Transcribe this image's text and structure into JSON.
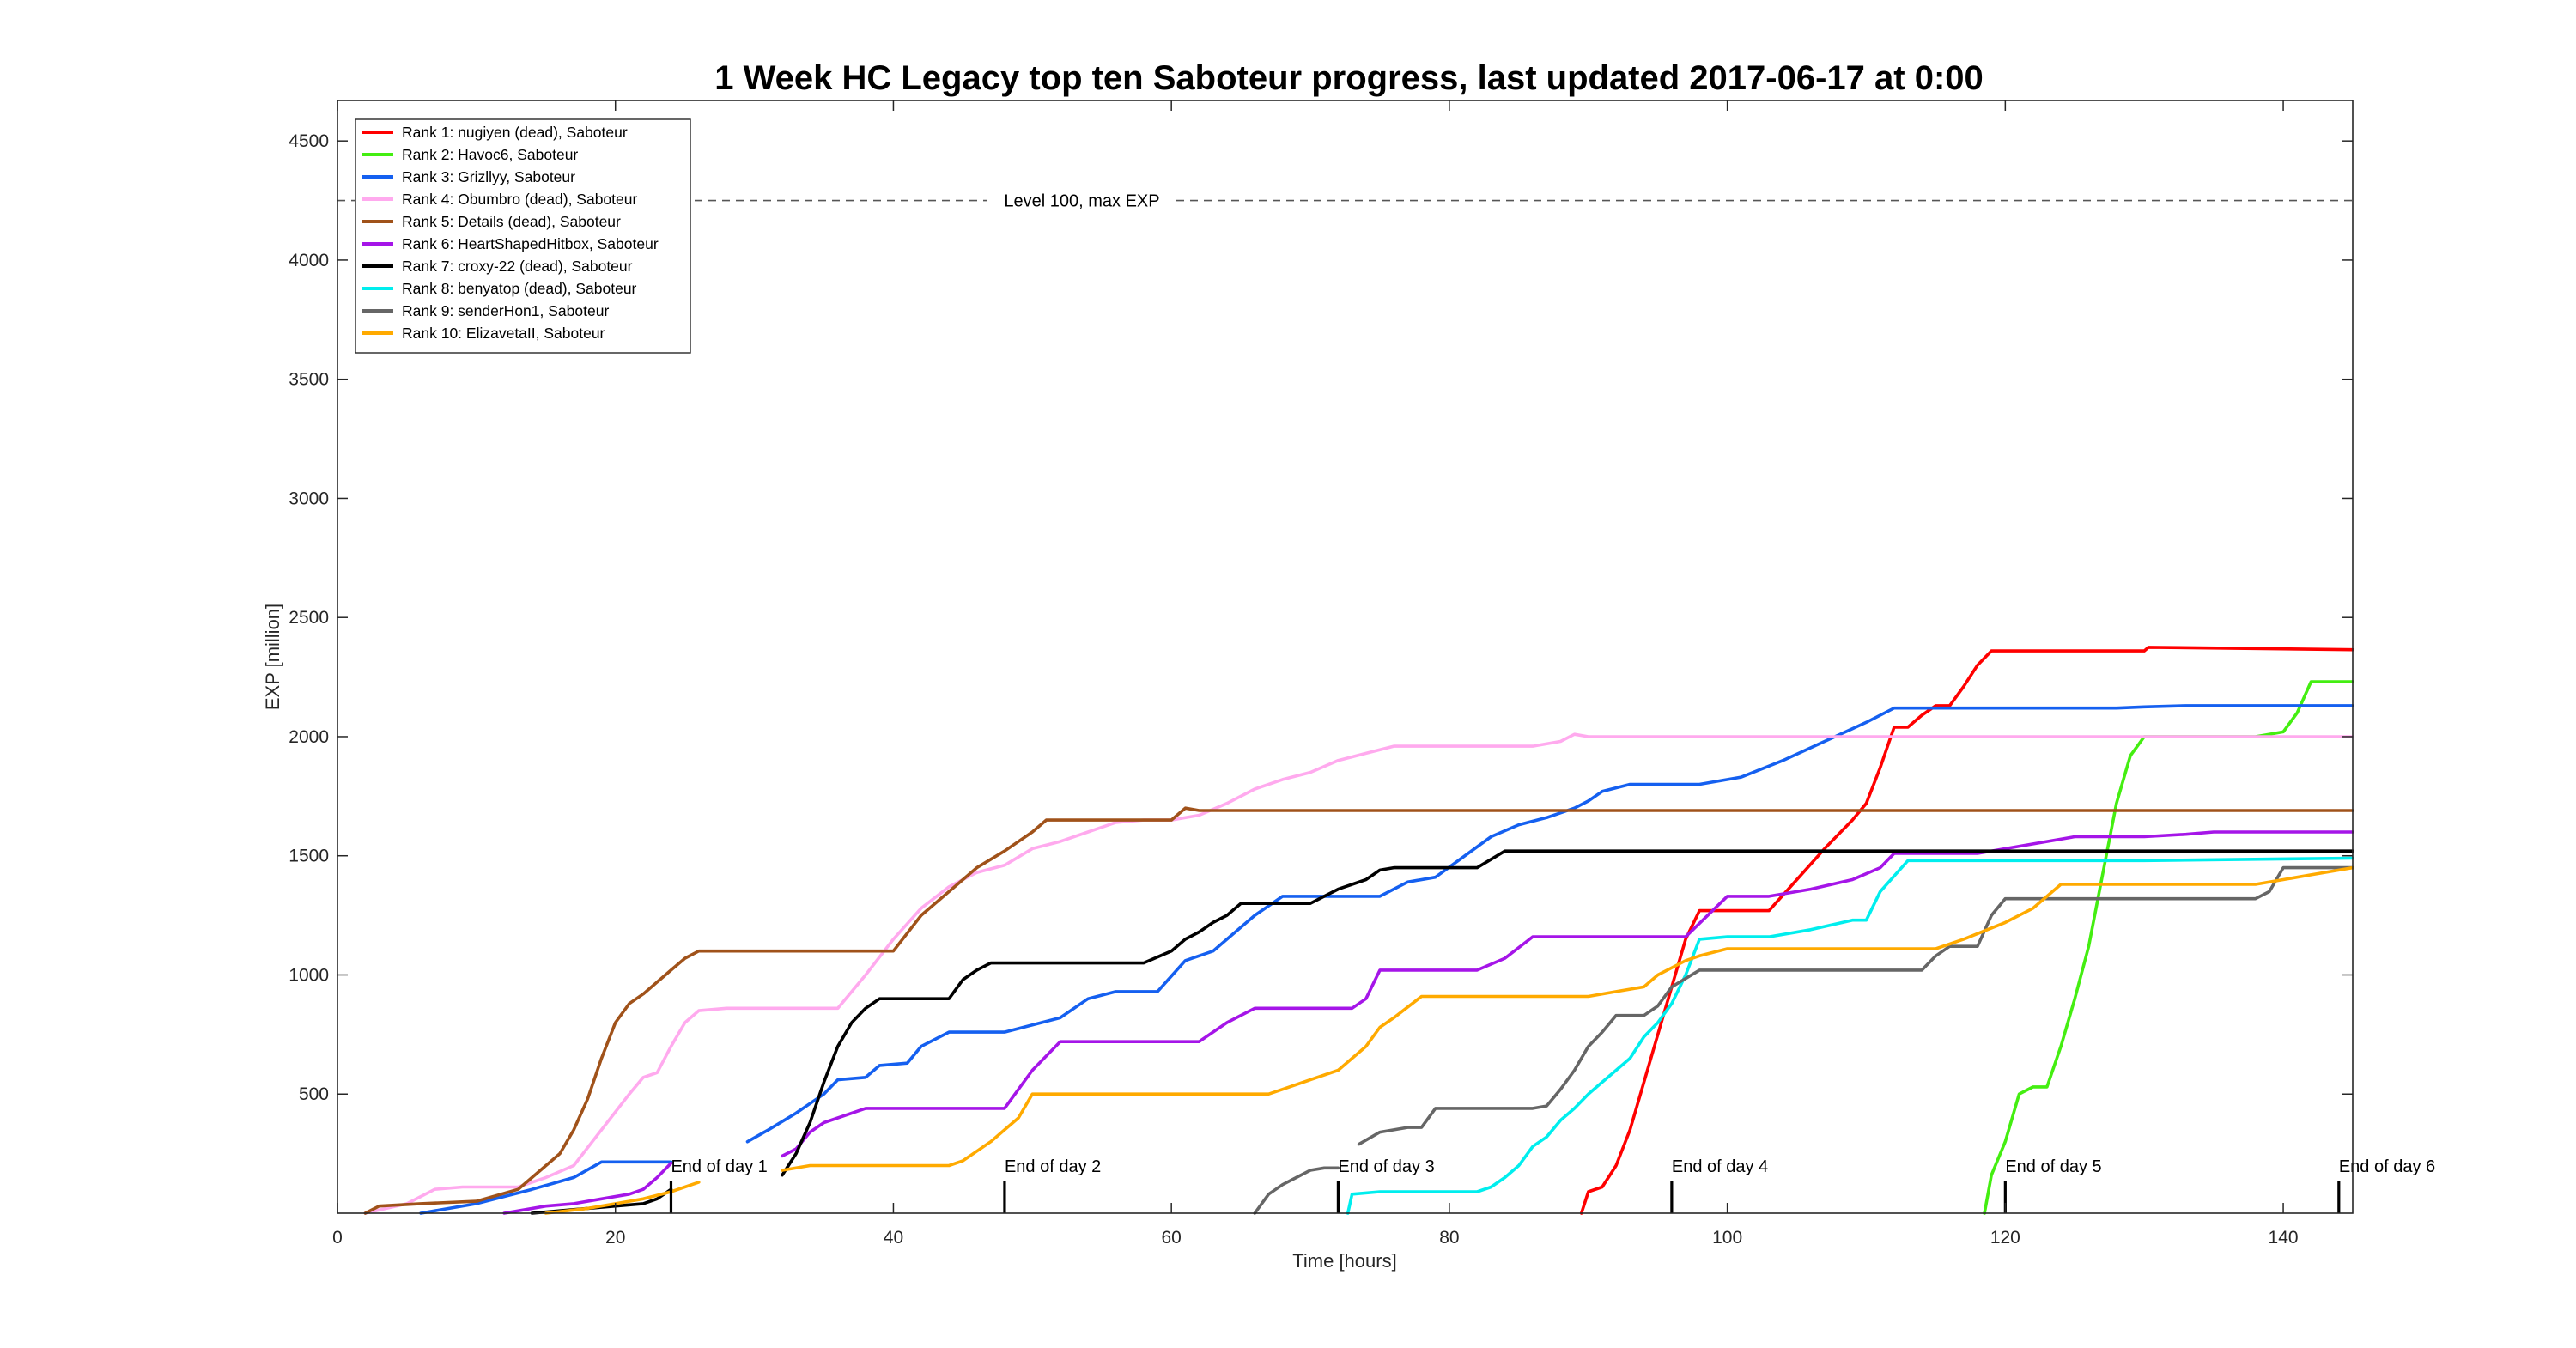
{
  "chart_data": {
    "type": "line",
    "title": "1 Week HC Legacy top ten Saboteur progress, last updated 2017-06-17 at 0:00",
    "xlabel": "Time [hours]",
    "ylabel": "EXP [million]",
    "xlim": [
      0,
      145
    ],
    "ylim": [
      0,
      4670
    ],
    "xticks": [
      0,
      20,
      40,
      60,
      80,
      100,
      120,
      140
    ],
    "yticks": [
      500,
      1000,
      1500,
      2000,
      2500,
      3000,
      3500,
      4000,
      4500
    ],
    "grid": false,
    "legend_position": "top-left",
    "max_level": {
      "value": 4250,
      "label": "Level 100, max EXP"
    },
    "day_markers": [
      {
        "x": 24,
        "label": "End of day 1"
      },
      {
        "x": 48,
        "label": "End of day 2"
      },
      {
        "x": 72,
        "label": "End of day 3"
      },
      {
        "x": 96,
        "label": "End of day 4"
      },
      {
        "x": 120,
        "label": "End of day 5"
      },
      {
        "x": 144,
        "label": "End of day 6"
      }
    ],
    "series": [
      {
        "name": "Rank 1: nugiyen (dead), Saboteur",
        "color": "#ff0000",
        "x": [
          89.5,
          90,
          91,
          92,
          93,
          94,
          95,
          96,
          97,
          98,
          99,
          101,
          103,
          105,
          107,
          109,
          110,
          111,
          112,
          113,
          114,
          115,
          116,
          117,
          118,
          119,
          130,
          130.3,
          145
        ],
        "y": [
          0,
          90,
          110,
          200,
          350,
          550,
          750,
          950,
          1150,
          1270,
          1270,
          1270,
          1270,
          1400,
          1530,
          1650,
          1720,
          1870,
          2040,
          2040,
          2090,
          2130,
          2130,
          2210,
          2300,
          2360,
          2360,
          2375,
          2365
        ]
      },
      {
        "name": "Rank 2: Havoc6, Saboteur",
        "color": "#44ee11",
        "x": [
          118.5,
          119,
          120,
          121,
          122,
          123,
          124,
          125,
          126,
          127,
          128,
          129,
          130,
          131,
          136,
          138,
          140,
          141,
          142,
          145
        ],
        "y": [
          0,
          160,
          300,
          500,
          530,
          530,
          700,
          900,
          1120,
          1420,
          1720,
          1920,
          2000,
          2000,
          2000,
          2000,
          2020,
          2100,
          2230,
          2230
        ]
      },
      {
        "name": "Rank 3: Grizllyy, Saboteur",
        "color": "#1560f0",
        "x": [
          6,
          10,
          14,
          17,
          19,
          21,
          24,
          null,
          29.5,
          31,
          33,
          35,
          36,
          38,
          39,
          41,
          42,
          44,
          48,
          50,
          52,
          54,
          56,
          59,
          61,
          63,
          66,
          68,
          71,
          75,
          77,
          79,
          83,
          85,
          87,
          89,
          90,
          91,
          93,
          96,
          98,
          101,
          104,
          107,
          110,
          112,
          116,
          128,
          130,
          133,
          145
        ],
        "y": [
          0,
          40,
          100,
          150,
          215,
          215,
          215,
          null,
          300,
          350,
          420,
          500,
          560,
          570,
          620,
          630,
          700,
          760,
          760,
          790,
          820,
          900,
          930,
          930,
          1060,
          1100,
          1250,
          1330,
          1330,
          1330,
          1390,
          1410,
          1580,
          1630,
          1660,
          1700,
          1730,
          1770,
          1800,
          1800,
          1800,
          1830,
          1900,
          1980,
          2060,
          2120,
          2120,
          2120,
          2125,
          2130,
          2130
        ]
      },
      {
        "name": "Rank 4: Obumbro (dead), Saboteur",
        "color": "#ffaaee",
        "x": [
          2,
          5,
          7,
          9,
          11,
          13,
          15,
          17,
          19,
          21,
          22,
          23,
          24,
          25,
          26,
          28,
          31,
          36,
          38,
          40,
          42,
          44,
          46,
          48,
          50,
          52,
          54,
          56,
          58,
          60,
          62,
          64,
          66,
          68,
          70,
          72,
          74,
          76,
          86,
          88,
          89,
          90,
          145
        ],
        "y": [
          0,
          40,
          100,
          110,
          110,
          110,
          150,
          200,
          350,
          500,
          570,
          590,
          700,
          800,
          850,
          860,
          860,
          860,
          1000,
          1150,
          1280,
          1370,
          1430,
          1460,
          1530,
          1560,
          1600,
          1640,
          1650,
          1650,
          1670,
          1720,
          1780,
          1820,
          1850,
          1900,
          1930,
          1960,
          1960,
          1980,
          2010,
          2000,
          2000
        ]
      },
      {
        "name": "Rank 5: Details (dead), Saboteur",
        "color": "#a0521a",
        "x": [
          2,
          3,
          6,
          10,
          13,
          15,
          16,
          17,
          18,
          19,
          20,
          21,
          22,
          23,
          24,
          25,
          26,
          27,
          30,
          35,
          40,
          42,
          44,
          46,
          48,
          50,
          51,
          53,
          58,
          60,
          61,
          62,
          145
        ],
        "y": [
          0,
          30,
          40,
          50,
          100,
          200,
          250,
          350,
          480,
          650,
          800,
          880,
          920,
          970,
          1020,
          1070,
          1100,
          1100,
          1100,
          1100,
          1100,
          1250,
          1350,
          1450,
          1520,
          1600,
          1650,
          1650,
          1650,
          1650,
          1700,
          1690,
          1690
        ]
      },
      {
        "name": "Rank 6: HeartShapedHitbox, Saboteur",
        "color": "#a515e8",
        "x": [
          12,
          15,
          17,
          19,
          21,
          22,
          23,
          24,
          null,
          32,
          33,
          34,
          35,
          36,
          38,
          40,
          42,
          44,
          46,
          48,
          50,
          52,
          54,
          56,
          58,
          60,
          62,
          64,
          66,
          68,
          70,
          72,
          73,
          74,
          75,
          77,
          80,
          82,
          84,
          86,
          88,
          91,
          93,
          95,
          97,
          100,
          103,
          106,
          109,
          111,
          112,
          118,
          125,
          130,
          133,
          135,
          145
        ],
        "y": [
          0,
          30,
          40,
          60,
          80,
          100,
          150,
          210,
          null,
          240,
          270,
          340,
          380,
          400,
          440,
          440,
          440,
          440,
          440,
          440,
          600,
          720,
          720,
          720,
          720,
          720,
          720,
          800,
          860,
          860,
          860,
          860,
          860,
          900,
          1020,
          1020,
          1020,
          1020,
          1070,
          1160,
          1160,
          1160,
          1160,
          1160,
          1160,
          1330,
          1330,
          1360,
          1400,
          1450,
          1510,
          1510,
          1580,
          1580,
          1590,
          1600,
          1600
        ]
      },
      {
        "name": "Rank 7: croxy-22 (dead), Saboteur",
        "color": "#000000",
        "x": [
          14,
          16,
          18,
          20,
          22,
          23,
          24,
          null,
          32,
          33,
          34,
          35,
          36,
          37,
          38,
          39,
          40,
          42,
          44,
          45,
          46,
          47,
          48,
          50,
          55,
          58,
          60,
          61,
          62,
          63,
          64,
          65,
          66,
          68,
          70,
          71,
          72,
          74,
          75,
          76,
          78,
          80,
          81,
          82,
          84,
          86,
          88,
          90,
          145
        ],
        "y": [
          0,
          10,
          20,
          30,
          40,
          60,
          100,
          null,
          160,
          250,
          380,
          550,
          700,
          800,
          860,
          900,
          900,
          900,
          900,
          980,
          1020,
          1050,
          1050,
          1050,
          1050,
          1050,
          1100,
          1150,
          1180,
          1220,
          1250,
          1300,
          1300,
          1300,
          1300,
          1330,
          1360,
          1400,
          1440,
          1450,
          1450,
          1450,
          1450,
          1450,
          1520,
          1520,
          1520,
          1520,
          1520
        ]
      },
      {
        "name": "Rank 8: benyatop (dead), Saboteur",
        "color": "#00eeee",
        "x": [
          72.7,
          73,
          75,
          79,
          82,
          83,
          84,
          85,
          86,
          87,
          88,
          89,
          90,
          91,
          92,
          93,
          94,
          95,
          96,
          97,
          98,
          100,
          101,
          103,
          106,
          109,
          110,
          111,
          113,
          115,
          120,
          130,
          145
        ],
        "y": [
          0,
          80,
          90,
          90,
          90,
          110,
          150,
          200,
          280,
          320,
          390,
          440,
          500,
          550,
          600,
          650,
          740,
          800,
          880,
          1000,
          1150,
          1160,
          1160,
          1160,
          1190,
          1230,
          1230,
          1350,
          1480,
          1480,
          1480,
          1480,
          1490
        ]
      },
      {
        "name": "Rank 9: senderHon1, Saboteur",
        "color": "#666666",
        "x": [
          66,
          67,
          68,
          69,
          70,
          71,
          72,
          null,
          73.5,
          75,
          77,
          78,
          79,
          80,
          82,
          84,
          86,
          87,
          88,
          89,
          90,
          91,
          92,
          93,
          94,
          95,
          96,
          98,
          100,
          105,
          110,
          114,
          115,
          116,
          118,
          119,
          120,
          125,
          130,
          135,
          138,
          139,
          140,
          145
        ],
        "y": [
          0,
          80,
          120,
          150,
          180,
          190,
          190,
          null,
          290,
          340,
          360,
          360,
          440,
          440,
          440,
          440,
          440,
          450,
          520,
          600,
          700,
          760,
          830,
          830,
          830,
          870,
          950,
          1020,
          1020,
          1020,
          1020,
          1020,
          1080,
          1120,
          1120,
          1250,
          1320,
          1320,
          1320,
          1320,
          1320,
          1350,
          1450,
          1450
        ]
      },
      {
        "name": "Rank 10: ElizavetaII, Saboteur",
        "color": "#ffaa00",
        "x": [
          15,
          18,
          20,
          22,
          24,
          26,
          null,
          32,
          34,
          36,
          38,
          40,
          42,
          44,
          45,
          46,
          47,
          48,
          49,
          50,
          55,
          60,
          65,
          67,
          68,
          70,
          72,
          73,
          74,
          75,
          76,
          78,
          80,
          85,
          90,
          92,
          94,
          95,
          96,
          97,
          98,
          100,
          105,
          110,
          113,
          115,
          117,
          120,
          122,
          124,
          130,
          138,
          140,
          142,
          145
        ],
        "y": [
          0,
          20,
          40,
          60,
          90,
          130,
          null,
          180,
          200,
          200,
          200,
          200,
          200,
          200,
          220,
          260,
          300,
          350,
          400,
          500,
          500,
          500,
          500,
          500,
          520,
          560,
          600,
          650,
          700,
          780,
          820,
          910,
          910,
          910,
          910,
          930,
          950,
          1000,
          1030,
          1060,
          1080,
          1110,
          1110,
          1110,
          1110,
          1110,
          1150,
          1220,
          1280,
          1380,
          1380,
          1380,
          1400,
          1420,
          1450
        ]
      }
    ]
  }
}
